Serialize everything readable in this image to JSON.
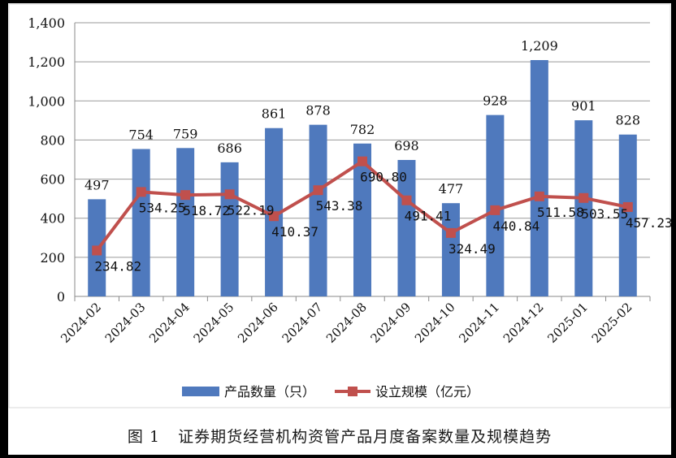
{
  "chart_data": {
    "type": "bar+line",
    "title": "图 1　证券期货经营机构资管产品月度备案数量及规模趋势",
    "figure_number": "图 1",
    "caption_text": "证券期货经营机构资管产品月度备案数量及规模趋势",
    "categories": [
      "2024-02",
      "2024-03",
      "2024-04",
      "2024-05",
      "2024-06",
      "2024-07",
      "2024-08",
      "2024-09",
      "2024-10",
      "2024-11",
      "2024-12",
      "2025-01",
      "2025-02"
    ],
    "series": [
      {
        "name": "产品数量（只）",
        "kind": "bar",
        "color": "#4f79bd",
        "values": [
          497,
          754,
          759,
          686,
          861,
          878,
          782,
          698,
          477,
          928,
          1209,
          901,
          828
        ],
        "labels": [
          "497",
          "754",
          "759",
          "686",
          "861",
          "878",
          "782",
          "698",
          "477",
          "928",
          "1,209",
          "901",
          "828"
        ]
      },
      {
        "name": "设立规模（亿元）",
        "kind": "line",
        "color": "#c0504d",
        "values": [
          234.82,
          534.25,
          518.72,
          522.19,
          410.37,
          543.38,
          690.8,
          491.41,
          324.49,
          440.84,
          511.58,
          503.55,
          457.23
        ],
        "labels": [
          "234.82",
          "534.25",
          "518.72",
          "522.19",
          "410.37",
          "543.38",
          "690.80",
          "491.41",
          "324.49",
          "440.84",
          "511.58",
          "503.55",
          "457.23"
        ]
      }
    ],
    "y_ticks": [
      0,
      200,
      400,
      600,
      800,
      1000,
      1200,
      1400
    ],
    "y_tick_labels": [
      "0",
      "200",
      "400",
      "600",
      "800",
      "1,000",
      "1,200",
      "1,400"
    ],
    "ylim": [
      0,
      1400
    ],
    "grid": true,
    "legend_position": "bottom"
  }
}
